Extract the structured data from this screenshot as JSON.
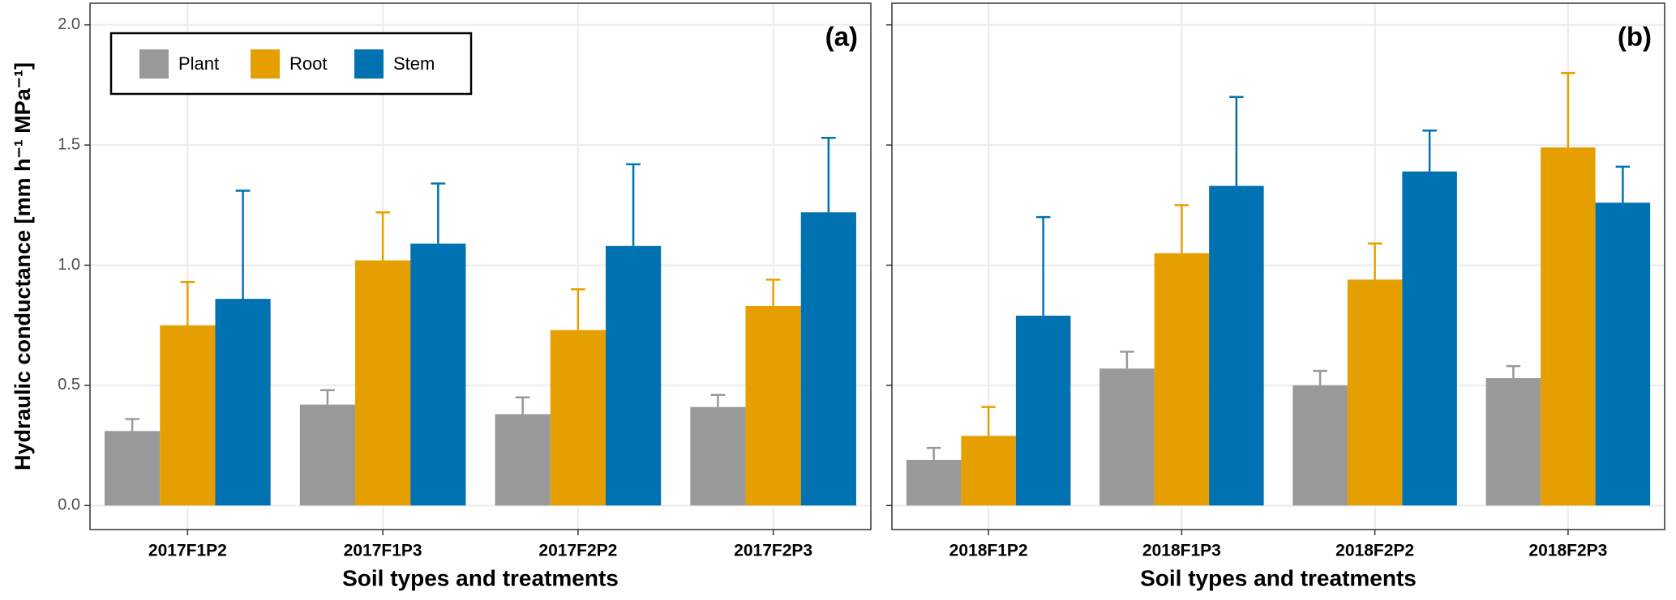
{
  "chart_data": [
    {
      "type": "bar",
      "panel_label": "(a)",
      "y_label": "Hydraulic conductance [mm h⁻¹ MPa⁻¹]",
      "x_label": "Soil types and treatments",
      "categories": [
        "2017F1P2",
        "2017F1P3",
        "2017F2P2",
        "2017F2P3"
      ],
      "series": [
        {
          "name": "Plant",
          "color": "#999999",
          "values": [
            0.31,
            0.42,
            0.38,
            0.41
          ],
          "errors": [
            0.05,
            0.06,
            0.07,
            0.05
          ]
        },
        {
          "name": "Root",
          "color": "#E69F00",
          "values": [
            0.75,
            1.02,
            0.73,
            0.83
          ],
          "errors": [
            0.18,
            0.2,
            0.17,
            0.11
          ]
        },
        {
          "name": "Stem",
          "color": "#0072B2",
          "values": [
            0.86,
            1.09,
            1.08,
            1.22
          ],
          "errors": [
            0.45,
            0.25,
            0.34,
            0.31
          ]
        }
      ],
      "ylim": [
        -0.1,
        2.09
      ],
      "yticks": [
        {
          "value": 0,
          "label": "0.0"
        },
        0.5,
        {
          "value": 1,
          "label": "1.0"
        },
        1.5,
        {
          "value": 2,
          "label": "2.0"
        }
      ],
      "ytick_labels": true,
      "legend": "top-left",
      "grid": true
    },
    {
      "type": "bar",
      "panel_label": "(b)",
      "x_label": "Soil types and treatments",
      "categories": [
        "2018F1P2",
        "2018F1P3",
        "2018F2P2",
        "2018F2P3"
      ],
      "series": [
        {
          "color": "#999999",
          "values": [
            0.19,
            0.57,
            0.5,
            0.53
          ],
          "errors": [
            0.05,
            0.07,
            0.06,
            0.05
          ]
        },
        {
          "color": "#E69F00",
          "values": [
            0.29,
            1.05,
            0.94,
            1.49
          ],
          "errors": [
            0.12,
            0.2,
            0.15,
            0.31
          ]
        },
        {
          "color": "#0072B2",
          "values": [
            0.79,
            1.33,
            1.39,
            1.26
          ],
          "errors": [
            0.41,
            0.37,
            0.17,
            0.15
          ]
        }
      ],
      "ylim": [
        -0.1,
        2.09
      ],
      "yticks": [
        0,
        0.5,
        1,
        1.5,
        2
      ],
      "ytick_labels": false,
      "grid": true
    }
  ]
}
